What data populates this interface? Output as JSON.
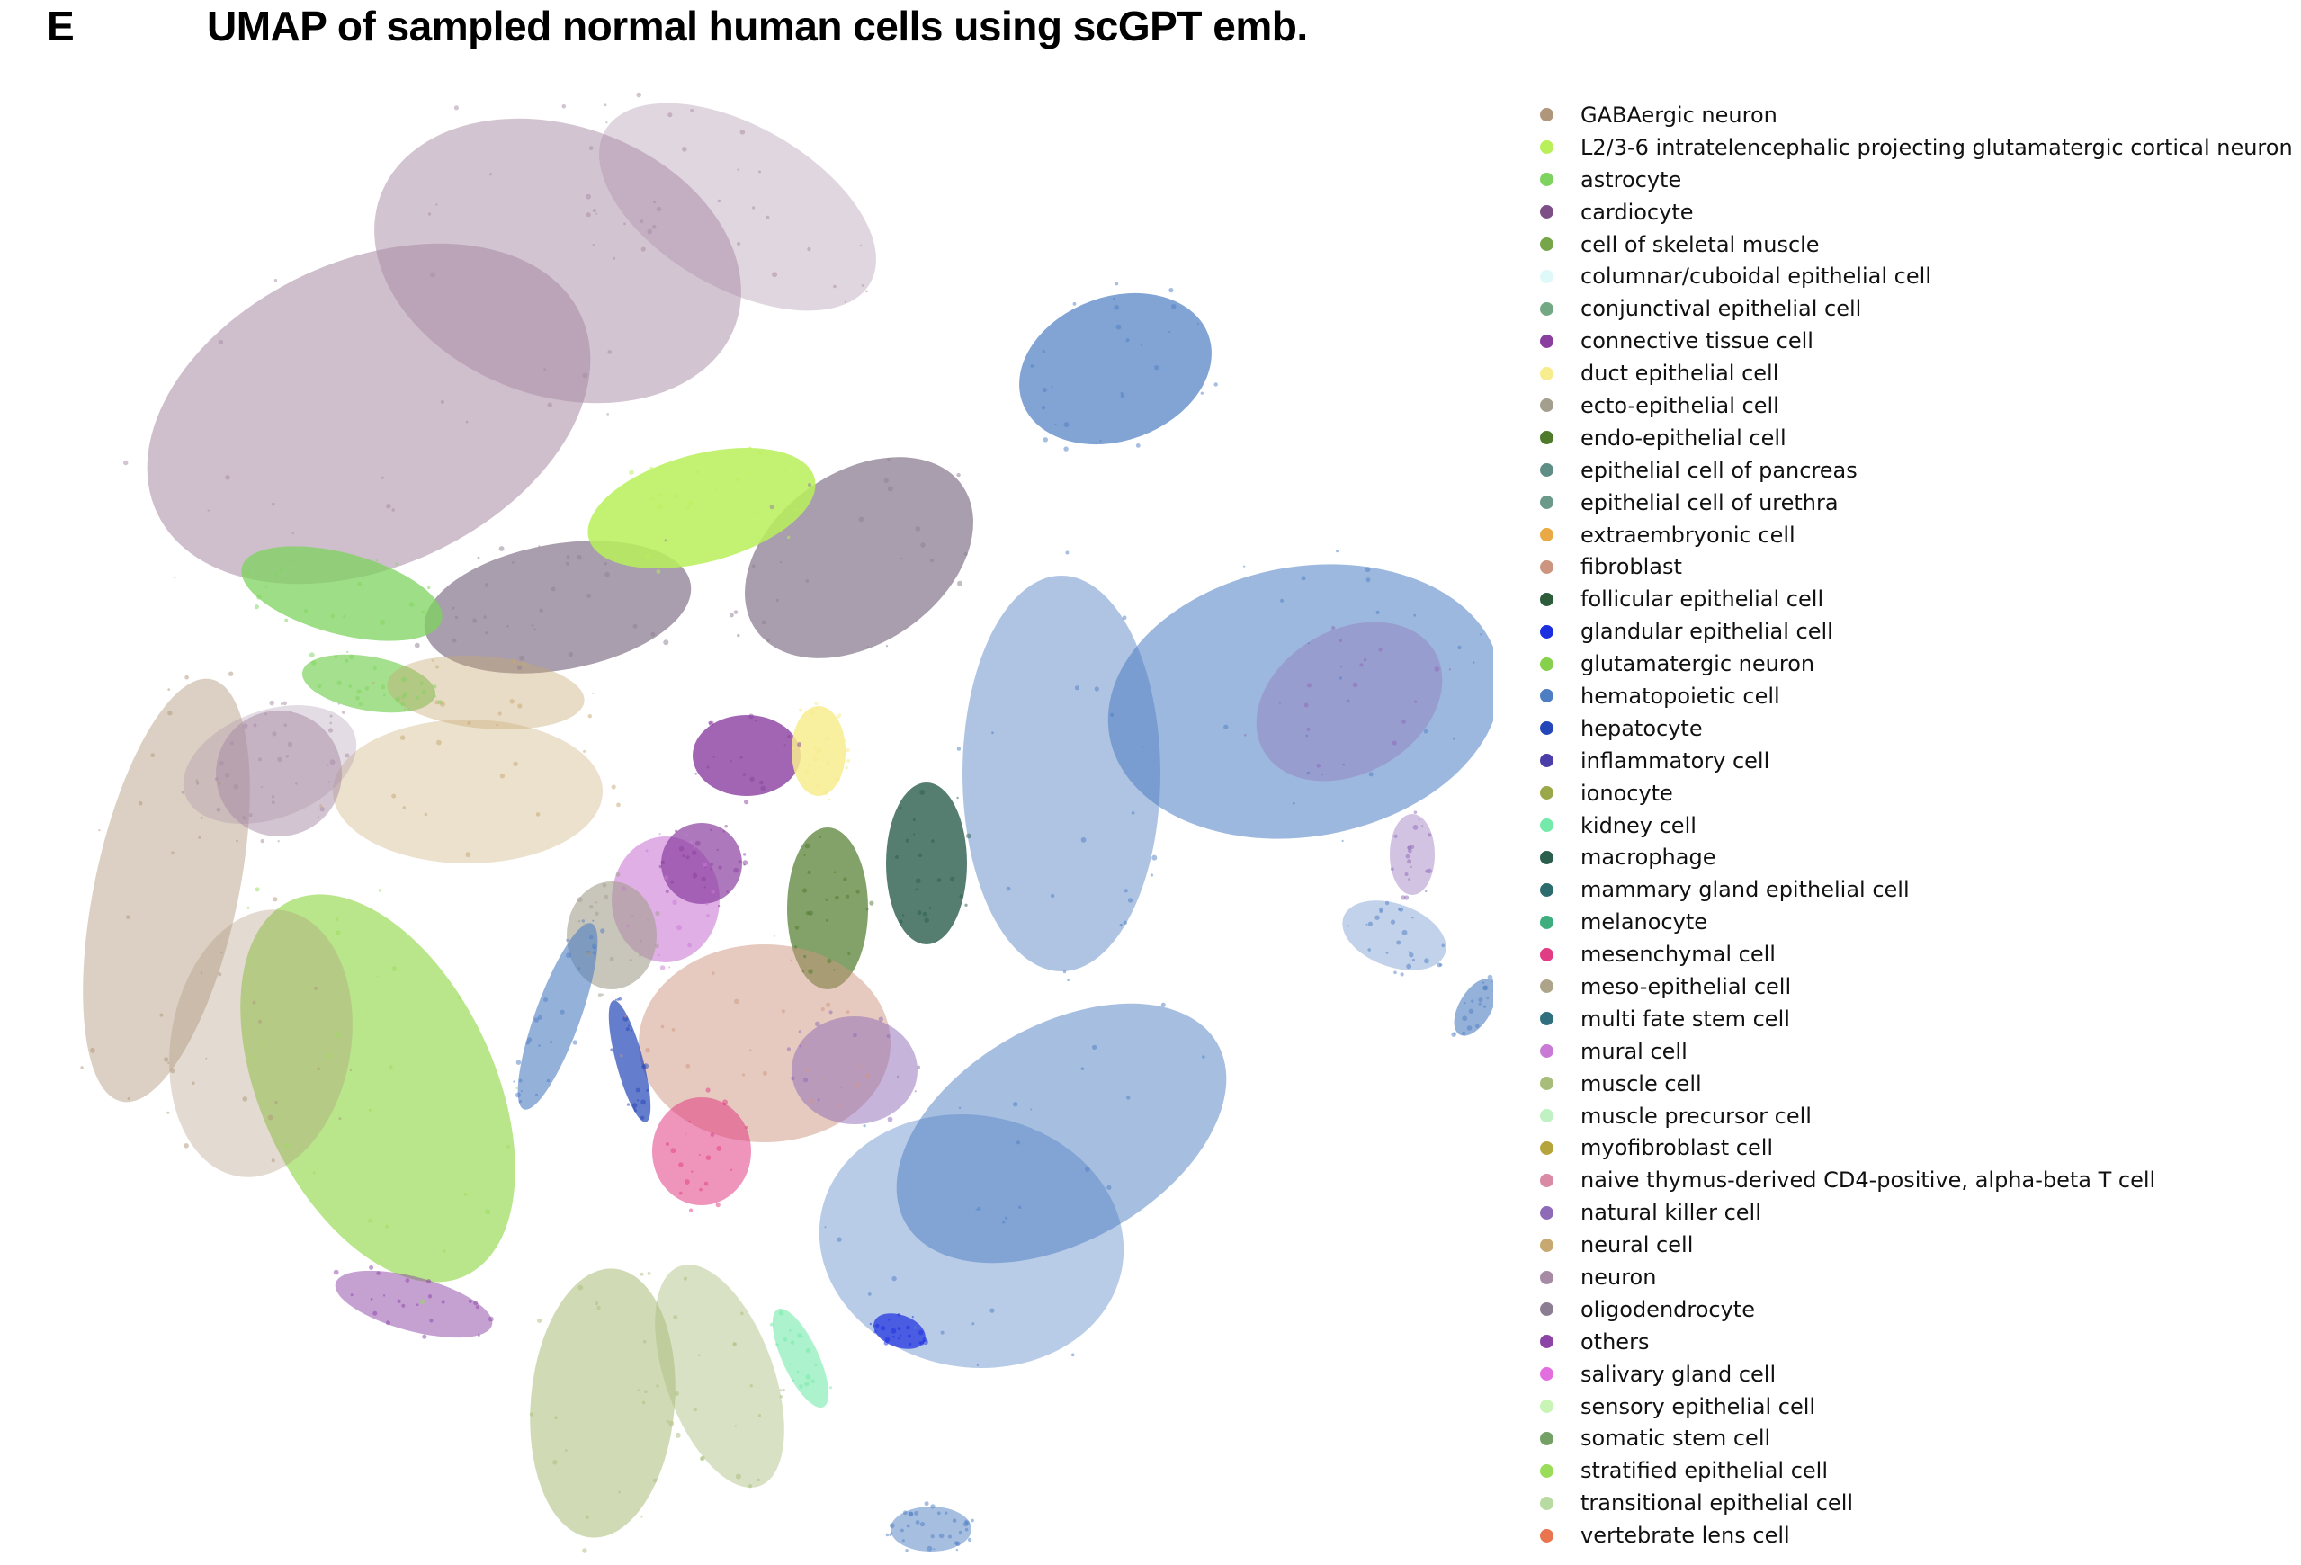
{
  "figure": {
    "panel_letter": "E",
    "title": "UMAP of sampled normal human cells using scGPT emb."
  },
  "chart_data": {
    "type": "scatter",
    "title": "UMAP of sampled normal human cells using scGPT emb.",
    "xlabel": "",
    "ylabel": "",
    "axes_visible": false,
    "grid": false,
    "legend_position": "right",
    "series": [
      {
        "name": "GABAergic neuron",
        "color": "#b0967a"
      },
      {
        "name": "L2/3-6 intratelencephalic projecting glutamatergic cortical neuron",
        "color": "#b9f05a"
      },
      {
        "name": "astrocyte",
        "color": "#7ed35e"
      },
      {
        "name": "cardiocyte",
        "color": "#7e4f86"
      },
      {
        "name": "cell of skeletal muscle",
        "color": "#77a64a"
      },
      {
        "name": "columnar/cuboidal epithelial cell",
        "color": "#dff9f9"
      },
      {
        "name": "conjunctival epithelial cell",
        "color": "#72a883"
      },
      {
        "name": "connective tissue cell",
        "color": "#8a3fa0"
      },
      {
        "name": "duct epithelial cell",
        "color": "#f7ec8e"
      },
      {
        "name": "ecto-epithelial cell",
        "color": "#a39e8e"
      },
      {
        "name": "endo-epithelial cell",
        "color": "#4f7a2b"
      },
      {
        "name": "epithelial cell of pancreas",
        "color": "#5f8e86"
      },
      {
        "name": "epithelial cell of urethra",
        "color": "#6c9a8a"
      },
      {
        "name": "extraembryonic cell",
        "color": "#e9aa45"
      },
      {
        "name": "fibroblast",
        "color": "#cd9580"
      },
      {
        "name": "follicular epithelial cell",
        "color": "#2c5c3a"
      },
      {
        "name": "glandular epithelial cell",
        "color": "#1b2ee0"
      },
      {
        "name": "glutamatergic neuron",
        "color": "#86d04c"
      },
      {
        "name": "hematopoietic cell",
        "color": "#4d7dc2"
      },
      {
        "name": "hepatocyte",
        "color": "#2346b8"
      },
      {
        "name": "inflammatory cell",
        "color": "#4b3ea8"
      },
      {
        "name": "ionocyte",
        "color": "#9aa84a"
      },
      {
        "name": "kidney cell",
        "color": "#74eaaa"
      },
      {
        "name": "macrophage",
        "color": "#2b5e4c"
      },
      {
        "name": "mammary gland epithelial cell",
        "color": "#2c6b6e"
      },
      {
        "name": "melanocyte",
        "color": "#3fae7e"
      },
      {
        "name": "mesenchymal cell",
        "color": "#e23c84"
      },
      {
        "name": "meso-epithelial cell",
        "color": "#ada48a"
      },
      {
        "name": "multi fate stem cell",
        "color": "#2f6f7e"
      },
      {
        "name": "mural cell",
        "color": "#c97ad6"
      },
      {
        "name": "muscle cell",
        "color": "#a9bd7a"
      },
      {
        "name": "muscle precursor cell",
        "color": "#bff1c2"
      },
      {
        "name": "myofibroblast cell",
        "color": "#b5a43b"
      },
      {
        "name": "naive thymus-derived CD4-positive, alpha-beta T cell",
        "color": "#d98aa4"
      },
      {
        "name": "natural killer cell",
        "color": "#8e6ab8"
      },
      {
        "name": "neural cell",
        "color": "#c6a870"
      },
      {
        "name": "neuron",
        "color": "#a78aa4"
      },
      {
        "name": "oligodendrocyte",
        "color": "#8b7e92"
      },
      {
        "name": "others",
        "color": "#8c44a6"
      },
      {
        "name": "salivary gland cell",
        "color": "#e36ee0"
      },
      {
        "name": "sensory epithelial cell",
        "color": "#c8f5b6"
      },
      {
        "name": "somatic stem cell",
        "color": "#73a065"
      },
      {
        "name": "stratified epithelial cell",
        "color": "#9bdc5a"
      },
      {
        "name": "transitional epithelial cell",
        "color": "#b7dba0"
      },
      {
        "name": "vertebrate lens cell",
        "color": "#e8754f"
      }
    ]
  }
}
